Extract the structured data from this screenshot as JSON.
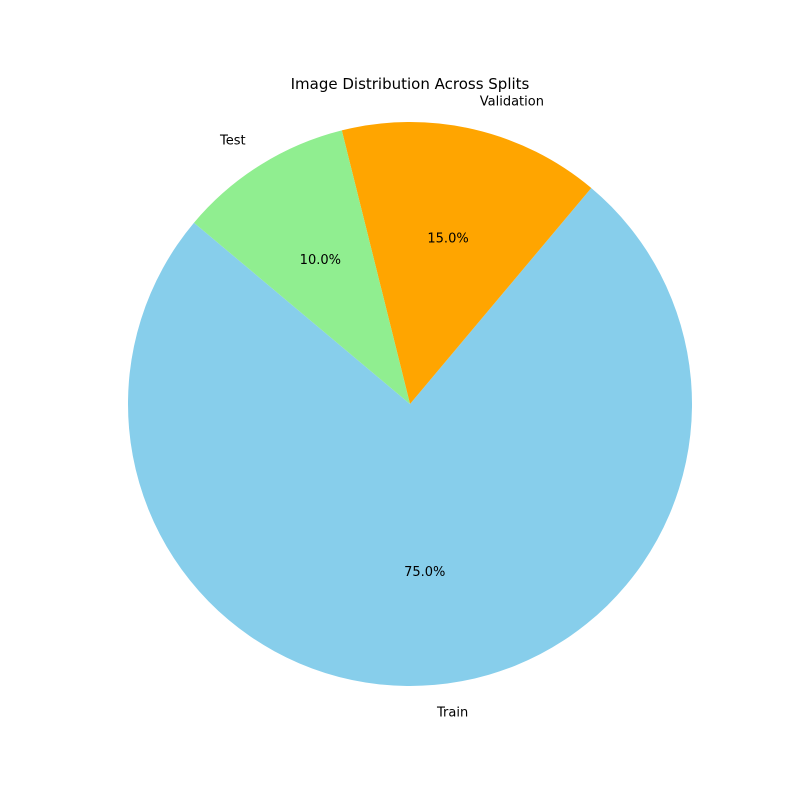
{
  "chart_data": {
    "type": "pie",
    "title": "Image Distribution Across Splits",
    "start_angle_deg": 140,
    "direction": "counterclockwise",
    "slices": [
      {
        "label": "Train",
        "value": 75.0,
        "pct_label": "75.0%",
        "color": "#87ceeb"
      },
      {
        "label": "Validation",
        "value": 15.0,
        "pct_label": "15.0%",
        "color": "#ffa500"
      },
      {
        "label": "Test",
        "value": 10.0,
        "pct_label": "10.0%",
        "color": "#90ee90"
      }
    ]
  }
}
